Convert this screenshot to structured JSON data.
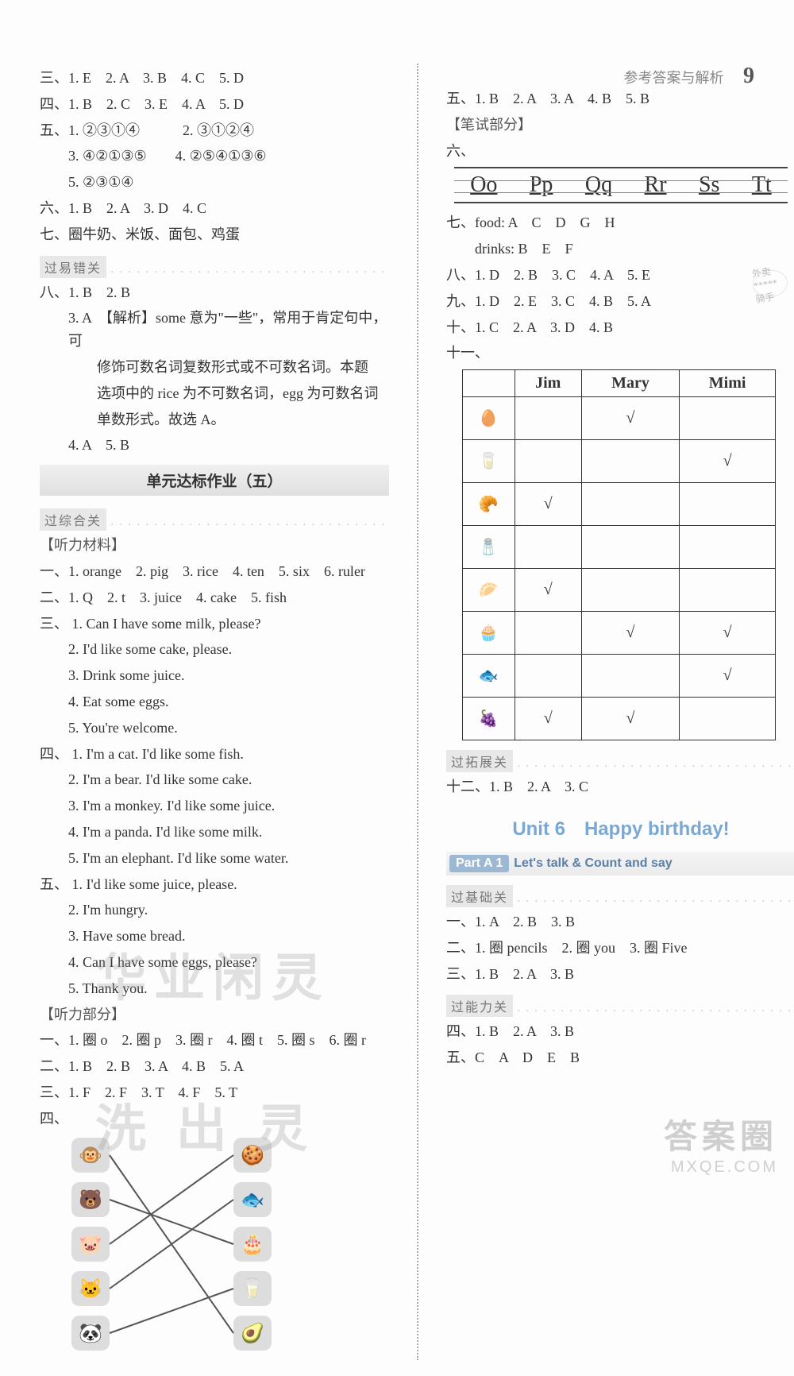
{
  "header": {
    "title": "参考答案与解析",
    "page_number": "9"
  },
  "left": {
    "san": "三、1. E　2. A　3. B　4. C　5. D",
    "si": "四、1. B　2. C　3. E　4. A　5. D",
    "wu1": "五、1. ②③①④　　　2. ③①②④",
    "wu2": "3. ④②①③⑤　　4. ②⑤④①③⑥",
    "wu3": "5. ②③①④",
    "liu": "六、1. B　2. A　3. D　4. C",
    "qi": "七、圈牛奶、米饭、面包、鸡蛋",
    "bar_cuo": "过易错关",
    "ba1": "八、1. B　2. B",
    "ba3a": "3. A　【解析】some 意为\"一些\"，常用于肯定句中，可",
    "ba3b": "修饰可数名词复数形式或不可数名词。本题",
    "ba3c": "选项中的 rice 为不可数名词，egg 为可数名词",
    "ba3d": "单数形式。故选 A。",
    "ba4": "4. A　5. B",
    "unit_title": "单元达标作业（五）",
    "bar_zong": "过综合关",
    "tl_mat": "【听力材料】",
    "tl_yi": "一、1. orange　2. pig　3. rice　4. ten　5. six　6. ruler",
    "tl_er": "二、1. Q　2. t　3. juice　4. cake　5. fish",
    "san_label": "三、",
    "san_1": "1. Can I have some milk, please?",
    "san_2": "2. I'd like some cake, please.",
    "san_3": "3. Drink some juice.",
    "san_4": "4. Eat some eggs.",
    "san_5": "5. You're welcome.",
    "si_label": "四、",
    "si_1": "1. I'm a cat. I'd like some fish.",
    "si_2": "2. I'm a bear. I'd like some cake.",
    "si_3": "3. I'm a monkey. I'd like some juice.",
    "si_4": "4. I'm a panda. I'd like some milk.",
    "si_5": "5. I'm an elephant. I'd like some water.",
    "wu_label": "五、",
    "wu_1": "1. I'd like some juice, please.",
    "wu_2": "2. I'm hungry.",
    "wu_3": "3. Have some bread.",
    "wu_4": "4. Can I have some eggs, please?",
    "wu_5": "5. Thank you.",
    "tl_part": "【听力部分】",
    "a_yi": "一、1. 圈 o　2. 圈 p　3. 圈 r　4. 圈 t　5. 圈 s　6. 圈 r",
    "a_er": "二、1. B　2. B　3. A　4. B　5. A",
    "a_san": "三、1. F　2. F　3. T　4. F　5. T",
    "a_si": "四、"
  },
  "diagram": {
    "left_nodes": [
      {
        "id": "monkey",
        "emoji": "🐵"
      },
      {
        "id": "bear",
        "emoji": "🐻"
      },
      {
        "id": "pig",
        "emoji": "🐷"
      },
      {
        "id": "cat",
        "emoji": "🐱"
      },
      {
        "id": "panda",
        "emoji": "🐼"
      }
    ],
    "right_nodes": [
      {
        "id": "cookies",
        "emoji": "🍪"
      },
      {
        "id": "fish",
        "emoji": "🐟"
      },
      {
        "id": "cake",
        "emoji": "🎂"
      },
      {
        "id": "milk",
        "emoji": "🥛"
      },
      {
        "id": "fruit",
        "emoji": "🥑"
      }
    ],
    "edges": [
      [
        "monkey",
        "fruit"
      ],
      [
        "bear",
        "cake"
      ],
      [
        "pig",
        "cookies"
      ],
      [
        "cat",
        "fish"
      ],
      [
        "panda",
        "milk"
      ]
    ],
    "node_bg": "#dddddd",
    "line_color": "#555555",
    "line_width": 2
  },
  "right": {
    "wu": "五、1. B　2. A　3. A　4. B　5. B",
    "bishi": "【笔试部分】",
    "liu": "六、",
    "handwriting": [
      "Oo",
      "Pp",
      "Qq",
      "Rr",
      "Ss",
      "Tt"
    ],
    "qi_food": "七、food: A　C　D　G　H",
    "qi_drinks": "drinks: B　E　F",
    "ba": "八、1. D　2. B　3. C　4. A　5. E",
    "jiu": "九、1. D　2. E　3. C　4. B　5. A",
    "shi": "十、1. C　2. A　3. D　4. B",
    "shiyi": "十一、",
    "badge": "外卖\n*****\n骑手",
    "table": {
      "columns": [
        "",
        "Jim",
        "Mary",
        "Mimi"
      ],
      "foods": [
        "🥚",
        "🥛",
        "🥐",
        "🧂",
        "🥟",
        "🧁",
        "🐟",
        "🍇"
      ],
      "checks": [
        [
          "",
          "√",
          ""
        ],
        [
          "",
          "",
          "√"
        ],
        [
          "√",
          "",
          ""
        ],
        [
          "",
          "",
          ""
        ],
        [
          "√",
          "",
          ""
        ],
        [
          "",
          "√",
          "√"
        ],
        [
          "",
          "",
          "√"
        ],
        [
          "√",
          "√",
          ""
        ]
      ]
    },
    "bar_tuo": "过拓展关",
    "shier": "十二、1. B　2. A　3. C",
    "unit6": "Unit 6　Happy birthday!",
    "part_tag": "Part A 1",
    "part_text": "Let's talk & Count and say",
    "bar_ji": "过基础关",
    "u_yi": "一、1. A　2. B　3. B",
    "u_er": "二、1. 圈 pencils　2. 圈 you　3. 圈 Five",
    "u_san": "三、1. B　2. A　3. B",
    "bar_neng": "过能力关",
    "u_si": "四、1. B　2. A　3. B",
    "u_wu": "五、C　A　D　E　B"
  },
  "watermarks": {
    "w1": "华业闲灵",
    "w2": "洗 出 灵",
    "big": "答案圈",
    "small": "MXQE.COM"
  },
  "colors": {
    "text": "#333333",
    "accent_blue": "#7aa8d4",
    "bar_bg": "#e8e8e8",
    "border": "#333333",
    "dot": "#bbbbbb",
    "badge": "#bbbbbb"
  }
}
